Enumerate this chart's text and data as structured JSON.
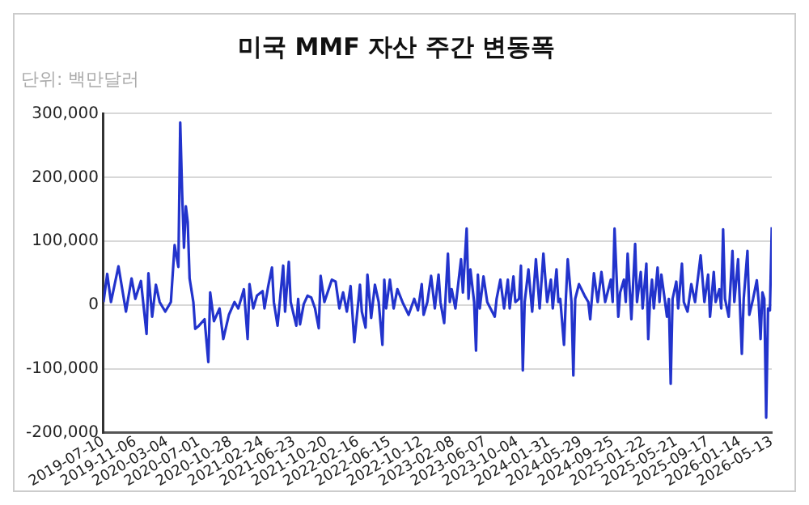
{
  "chart_data": {
    "type": "line",
    "title": "미국 MMF 자산 주간 변동폭",
    "subtitle": "단위: 백만달러",
    "x": [
      "2019-07-10",
      "2019-07-24",
      "2019-08-07",
      "2019-09-04",
      "2019-10-02",
      "2019-10-23",
      "2019-11-06",
      "2019-11-27",
      "2019-12-18",
      "2019-12-25",
      "2020-01-08",
      "2020-01-22",
      "2020-02-05",
      "2020-02-26",
      "2020-03-18",
      "2020-04-01",
      "2020-04-15",
      "2020-04-22",
      "2020-04-29",
      "2020-05-06",
      "2020-05-13",
      "2020-05-20",
      "2020-05-27",
      "2020-06-10",
      "2020-06-17",
      "2020-07-01",
      "2020-07-22",
      "2020-08-05",
      "2020-08-12",
      "2020-08-26",
      "2020-09-16",
      "2020-09-30",
      "2020-10-21",
      "2020-11-11",
      "2020-11-25",
      "2020-12-16",
      "2020-12-30",
      "2021-01-06",
      "2021-01-20",
      "2021-02-03",
      "2021-02-24",
      "2021-03-03",
      "2021-03-17",
      "2021-03-31",
      "2021-04-07",
      "2021-04-21",
      "2021-05-12",
      "2021-05-19",
      "2021-06-02",
      "2021-06-09",
      "2021-06-30",
      "2021-07-07",
      "2021-07-14",
      "2021-07-28",
      "2021-08-11",
      "2021-08-25",
      "2021-09-08",
      "2021-09-22",
      "2021-09-29",
      "2021-10-13",
      "2021-11-10",
      "2021-11-24",
      "2021-12-08",
      "2021-12-22",
      "2022-01-05",
      "2022-01-19",
      "2022-02-02",
      "2022-02-23",
      "2022-03-02",
      "2022-03-16",
      "2022-03-23",
      "2022-04-06",
      "2022-04-20",
      "2022-05-04",
      "2022-05-18",
      "2022-05-25",
      "2022-06-01",
      "2022-06-15",
      "2022-06-29",
      "2022-07-13",
      "2022-08-03",
      "2022-08-24",
      "2022-09-14",
      "2022-09-28",
      "2022-10-12",
      "2022-10-19",
      "2022-11-02",
      "2022-11-16",
      "2022-11-30",
      "2022-12-14",
      "2022-12-21",
      "2023-01-04",
      "2023-01-18",
      "2023-01-25",
      "2023-02-01",
      "2023-02-15",
      "2023-03-08",
      "2023-03-15",
      "2023-03-29",
      "2023-04-05",
      "2023-04-12",
      "2023-04-26",
      "2023-05-03",
      "2023-05-10",
      "2023-05-17",
      "2023-05-31",
      "2023-06-14",
      "2023-07-12",
      "2023-07-19",
      "2023-08-02",
      "2023-08-16",
      "2023-08-30",
      "2023-09-06",
      "2023-09-20",
      "2023-09-27",
      "2023-10-11",
      "2023-10-18",
      "2023-10-25",
      "2023-11-01",
      "2023-11-15",
      "2023-11-29",
      "2023-12-13",
      "2023-12-27",
      "2024-01-10",
      "2024-01-24",
      "2024-02-07",
      "2024-02-14",
      "2024-02-28",
      "2024-03-06",
      "2024-03-13",
      "2024-03-27",
      "2024-04-03",
      "2024-04-10",
      "2024-04-24",
      "2024-05-01",
      "2024-05-08",
      "2024-05-22",
      "2024-06-12",
      "2024-06-26",
      "2024-07-03",
      "2024-07-17",
      "2024-07-31",
      "2024-08-14",
      "2024-08-28",
      "2024-09-18",
      "2024-09-25",
      "2024-10-02",
      "2024-10-16",
      "2024-10-23",
      "2024-11-06",
      "2024-11-13",
      "2024-11-20",
      "2024-12-04",
      "2024-12-18",
      "2024-12-25",
      "2025-01-08",
      "2025-01-15",
      "2025-01-29",
      "2025-02-05",
      "2025-02-12",
      "2025-02-19",
      "2025-02-26",
      "2025-03-12",
      "2025-03-19",
      "2025-03-26",
      "2025-04-09",
      "2025-04-16",
      "2025-04-23",
      "2025-04-30",
      "2025-05-07",
      "2025-05-21",
      "2025-05-28",
      "2025-06-11",
      "2025-06-18",
      "2025-07-02",
      "2025-07-16",
      "2025-07-30",
      "2025-08-20",
      "2025-09-03",
      "2025-09-17",
      "2025-09-24",
      "2025-10-08",
      "2025-10-15",
      "2025-10-29",
      "2025-11-05",
      "2025-11-12",
      "2025-11-19",
      "2025-12-03",
      "2025-12-17",
      "2025-12-24",
      "2026-01-07",
      "2026-01-21",
      "2026-01-28",
      "2026-02-11",
      "2026-02-18",
      "2026-03-04",
      "2026-03-18",
      "2026-03-25",
      "2026-04-01",
      "2026-04-08",
      "2026-04-15",
      "2026-04-22",
      "2026-04-29",
      "2026-05-06",
      "2026-05-13"
    ],
    "series": [
      {
        "color": "#2233cc",
        "values": [
          5000,
          49000,
          5000,
          61000,
          -10000,
          42000,
          10000,
          38000,
          -45000,
          50000,
          -18000,
          32000,
          5000,
          -10000,
          5000,
          94000,
          60000,
          286000,
          177000,
          90000,
          155000,
          130000,
          42000,
          5000,
          -37000,
          -32000,
          -22000,
          -89000,
          20000,
          -25000,
          -5000,
          -53000,
          -15000,
          5000,
          -5000,
          25000,
          -53000,
          33000,
          -5000,
          15000,
          22000,
          -5000,
          30000,
          59000,
          5000,
          -32000,
          62000,
          -10000,
          68000,
          5000,
          -32000,
          10000,
          -30000,
          2000,
          15000,
          12000,
          -5000,
          -36000,
          46000,
          5000,
          40000,
          37000,
          -5000,
          20000,
          -10000,
          30000,
          -58000,
          32000,
          -10000,
          -35000,
          48000,
          -20000,
          32000,
          5000,
          -62000,
          40000,
          -5000,
          40000,
          -5000,
          25000,
          3000,
          -15000,
          10000,
          -8000,
          33000,
          -15000,
          5000,
          46000,
          -5000,
          48000,
          5000,
          -28000,
          81000,
          5000,
          25000,
          -5000,
          72000,
          20000,
          120000,
          10000,
          56000,
          5000,
          -71000,
          48000,
          -5000,
          45000,
          5000,
          -18000,
          10000,
          40000,
          -5000,
          40000,
          -5000,
          45000,
          5000,
          10000,
          62000,
          -102000,
          5000,
          56000,
          -10000,
          72000,
          -5000,
          81000,
          5000,
          40000,
          -5000,
          56000,
          5000,
          10000,
          -62000,
          10000,
          72000,
          5000,
          -110000,
          10000,
          33000,
          15000,
          5000,
          -22000,
          50000,
          5000,
          52000,
          5000,
          40000,
          5000,
          120000,
          -18000,
          20000,
          40000,
          5000,
          81000,
          -22000,
          96000,
          5000,
          52000,
          -5000,
          65000,
          -53000,
          10000,
          40000,
          -5000,
          59000,
          5000,
          48000,
          5000,
          -18000,
          10000,
          -123000,
          10000,
          37000,
          -5000,
          65000,
          5000,
          -10000,
          33000,
          5000,
          78000,
          5000,
          48000,
          -18000,
          52000,
          5000,
          25000,
          -5000,
          119000,
          10000,
          -18000,
          85000,
          5000,
          72000,
          -76000,
          10000,
          85000,
          -15000,
          10000,
          39000,
          5000,
          -53000,
          20000,
          10000,
          -176000,
          -5000,
          -8000,
          122000
        ]
      }
    ],
    "xlim": [
      "2019-07-10",
      "2026-05-13"
    ],
    "xticks": [
      "2019-07-10",
      "2019-11-06",
      "2020-03-04",
      "2020-07-01",
      "2020-10-28",
      "2021-02-24",
      "2021-06-23",
      "2021-10-20",
      "2022-02-16",
      "2022-06-15",
      "2022-10-12",
      "2023-02-08",
      "2023-06-07",
      "2023-10-04",
      "2024-01-31",
      "2024-05-29",
      "2024-09-25",
      "2025-01-22",
      "2025-05-21",
      "2025-09-17",
      "2026-01-14",
      "2026-05-13"
    ],
    "ylim": [
      -200000,
      300000
    ],
    "yticks": [
      {
        "value": -200000,
        "label": "-200,000"
      },
      {
        "value": -100000,
        "label": "-100,000"
      },
      0,
      {
        "value": 100000,
        "label": "100,000"
      },
      {
        "value": 200000,
        "label": "200,000"
      },
      {
        "value": 300000,
        "label": "300,000"
      }
    ],
    "grid": "y",
    "marker": "none",
    "line_style": "solid",
    "legend": false
  }
}
